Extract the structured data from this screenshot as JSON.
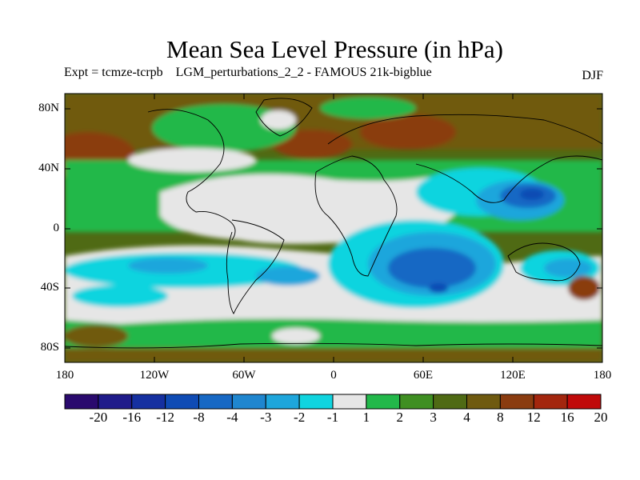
{
  "title": "Mean Sea Level Pressure (in hPa)",
  "subtitle": "Expt = tcmze-tcrpb    LGM_perturbations_2_2 - FAMOUS 21k-bigblue",
  "season": "DJF",
  "axes": {
    "lat_ticks": [
      "80N",
      "40N",
      "0",
      "40S",
      "80S"
    ],
    "lon_ticks": [
      "180",
      "120W",
      "60W",
      "0",
      "60E",
      "120E",
      "180"
    ]
  },
  "colorbar": {
    "labels": [
      "-20",
      "-16",
      "-12",
      "-8",
      "-4",
      "-3",
      "-2",
      "-1",
      "1",
      "2",
      "3",
      "4",
      "8",
      "12",
      "16",
      "20"
    ],
    "colors": [
      "#2a0a6e",
      "#1f1b8a",
      "#1530a0",
      "#0f4bb4",
      "#1768c4",
      "#1f86cf",
      "#1ea6dc",
      "#10d4df",
      "#e6e6e6",
      "#22b84a",
      "#3f8f22",
      "#4f6a14",
      "#6f5a10",
      "#8a3c10",
      "#a3260e",
      "#c00a0a"
    ]
  }
}
